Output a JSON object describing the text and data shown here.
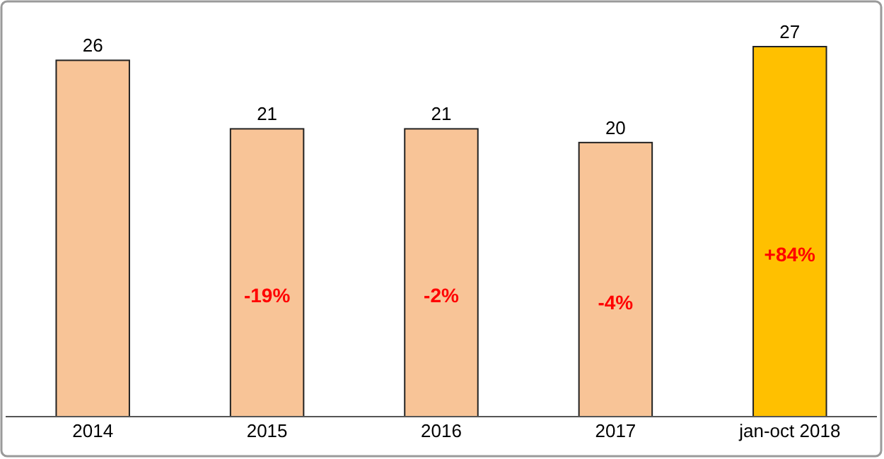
{
  "chart_data": {
    "type": "bar",
    "categories": [
      "2014",
      "2015",
      "2016",
      "2017",
      "jan-oct 2018"
    ],
    "values": [
      26,
      21,
      21,
      20,
      27
    ],
    "colors": [
      "#f8c497",
      "#f8c497",
      "#f8c497",
      "#f8c497",
      "#ffc000"
    ],
    "data_labels": true,
    "annotations": [
      "-19%",
      "-2%",
      "-4%",
      "+84%"
    ]
  }
}
